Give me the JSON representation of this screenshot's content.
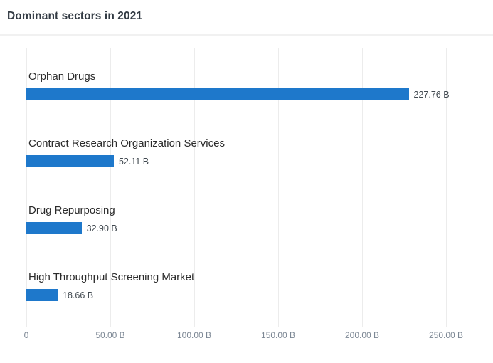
{
  "header": {
    "title": "Dominant sectors in 2021"
  },
  "chart_data": {
    "type": "bar",
    "orientation": "horizontal",
    "title": "Dominant sectors in 2021",
    "categories": [
      "Orphan Drugs",
      "Contract Research Organization Services",
      "Drug Repurposing",
      "High Throughput Screening Market"
    ],
    "values": [
      227.76,
      52.11,
      32.9,
      18.66
    ],
    "value_labels": [
      "227.76 B",
      "52.11 B",
      "32.90 B",
      "18.66 B"
    ],
    "unit": "B",
    "xlim": [
      0,
      277
    ],
    "x_ticks": [
      {
        "value": 0,
        "label": "0"
      },
      {
        "value": 50,
        "label": "50.00 B"
      },
      {
        "value": 100,
        "label": "100.00 B"
      },
      {
        "value": 150,
        "label": "150.00 B"
      },
      {
        "value": 200,
        "label": "200.00 B"
      },
      {
        "value": 250,
        "label": "250.00 B"
      }
    ],
    "grid": "vertical",
    "legend": "none",
    "bar_color": "#1e78cb",
    "colors": {
      "title_text": "#333b44",
      "category_text": "#2b2b2b",
      "value_text": "#40484f",
      "axis_text": "#7c8794",
      "gridline": "#ececec"
    }
  }
}
